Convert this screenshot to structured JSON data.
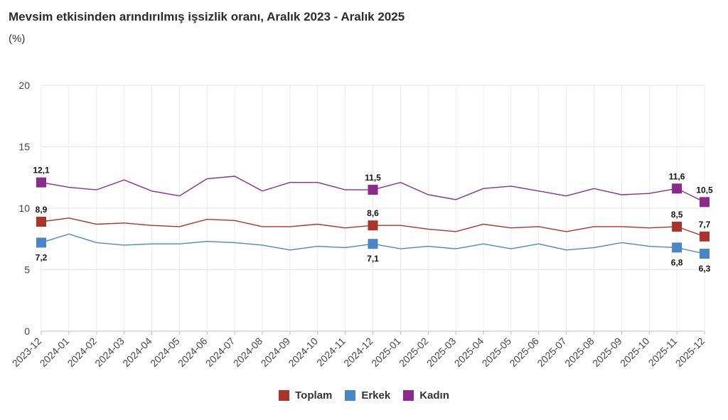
{
  "title": "Mevsim etkisinden arındırılmış işsizlik oranı, Aralık 2023 - Aralık 2025",
  "subtitle": "(%)",
  "chart_data": {
    "type": "line",
    "categories": [
      "2023-12",
      "2024-01",
      "2024-02",
      "2024-03",
      "2024-04",
      "2024-05",
      "2024-06",
      "2024-07",
      "2024-08",
      "2024-09",
      "2024-10",
      "2024-11",
      "2024-12",
      "2025-01",
      "2025-02",
      "2025-03",
      "2025-04",
      "2025-05",
      "2025-06",
      "2025-07",
      "2025-08",
      "2025-09",
      "2025-10",
      "2025-11",
      "2025-12"
    ],
    "ylim": [
      0,
      20
    ],
    "yticks": [
      "0",
      "5",
      "10",
      "15",
      "20"
    ],
    "grid": true,
    "legend_position": "bottom",
    "series": [
      {
        "name": "Toplam",
        "color": "#a8342a",
        "values": [
          8.9,
          9.2,
          8.7,
          8.8,
          8.6,
          8.5,
          9.1,
          9.0,
          8.5,
          8.5,
          8.7,
          8.4,
          8.6,
          8.6,
          8.3,
          8.1,
          8.7,
          8.4,
          8.5,
          8.1,
          8.5,
          8.5,
          8.4,
          8.5,
          7.7
        ]
      },
      {
        "name": "Erkek",
        "color": "#4a86c5",
        "values": [
          7.2,
          7.9,
          7.2,
          7.0,
          7.1,
          7.1,
          7.3,
          7.2,
          7.0,
          6.6,
          6.9,
          6.8,
          7.1,
          6.7,
          6.9,
          6.7,
          7.1,
          6.7,
          7.1,
          6.6,
          6.8,
          7.2,
          6.9,
          6.8,
          6.3
        ]
      },
      {
        "name": "Kadın",
        "color": "#8b2a8a",
        "values": [
          12.1,
          11.7,
          11.5,
          12.3,
          11.4,
          11.0,
          12.4,
          12.6,
          11.4,
          12.1,
          12.1,
          11.5,
          11.5,
          12.1,
          11.1,
          10.7,
          11.6,
          11.8,
          11.4,
          11.0,
          11.6,
          11.1,
          11.2,
          11.6,
          10.5
        ]
      }
    ],
    "annotations": [
      {
        "series": "Kadın",
        "index": 0,
        "text": "12,1",
        "position": "above"
      },
      {
        "series": "Kadın",
        "index": 12,
        "text": "11,5",
        "position": "above"
      },
      {
        "series": "Kadın",
        "index": 23,
        "text": "11,6",
        "position": "above"
      },
      {
        "series": "Kadın",
        "index": 24,
        "text": "10,5",
        "position": "above"
      },
      {
        "series": "Toplam",
        "index": 0,
        "text": "8,9",
        "position": "above"
      },
      {
        "series": "Toplam",
        "index": 12,
        "text": "8,6",
        "position": "above"
      },
      {
        "series": "Toplam",
        "index": 23,
        "text": "8,5",
        "position": "above"
      },
      {
        "series": "Toplam",
        "index": 24,
        "text": "7,7",
        "position": "above"
      },
      {
        "series": "Erkek",
        "index": 0,
        "text": "7,2",
        "position": "below"
      },
      {
        "series": "Erkek",
        "index": 12,
        "text": "7,1",
        "position": "below"
      },
      {
        "series": "Erkek",
        "index": 23,
        "text": "6,8",
        "position": "below"
      },
      {
        "series": "Erkek",
        "index": 24,
        "text": "6,3",
        "position": "below"
      }
    ]
  },
  "legend": [
    {
      "label": "Toplam",
      "color": "#a8342a"
    },
    {
      "label": "Erkek",
      "color": "#4a86c5"
    },
    {
      "label": "Kadın",
      "color": "#8b2a8a"
    }
  ]
}
